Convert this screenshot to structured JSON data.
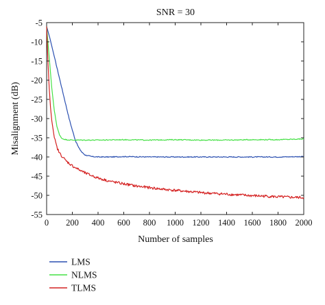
{
  "chart_data": {
    "type": "line",
    "title": "SNR = 30",
    "xlabel": "Number of samples",
    "ylabel": "Misalignment (dB)",
    "xlim": [
      0,
      2000
    ],
    "ylim": [
      -55,
      -5
    ],
    "xticks": [
      0,
      200,
      400,
      600,
      800,
      1000,
      1200,
      1400,
      1600,
      1800,
      2000
    ],
    "yticks": [
      -5,
      -10,
      -15,
      -20,
      -25,
      -30,
      -35,
      -40,
      -45,
      -50,
      -55
    ],
    "grid": false,
    "legend_position": "bottom-left, below plot",
    "series": [
      {
        "name": "LMS",
        "color": "#2a4fb0",
        "points": [
          [
            0,
            -6
          ],
          [
            25,
            -9
          ],
          [
            50,
            -12.5
          ],
          [
            75,
            -16
          ],
          [
            100,
            -19.5
          ],
          [
            125,
            -23
          ],
          [
            150,
            -26.5
          ],
          [
            175,
            -30
          ],
          [
            200,
            -33
          ],
          [
            225,
            -35.8
          ],
          [
            250,
            -37.6
          ],
          [
            275,
            -38.8
          ],
          [
            300,
            -39.5
          ],
          [
            350,
            -39.9
          ],
          [
            400,
            -40.0
          ],
          [
            500,
            -40.0
          ],
          [
            600,
            -39.9
          ],
          [
            800,
            -40.0
          ],
          [
            1000,
            -40.0
          ],
          [
            1200,
            -40.0
          ],
          [
            1400,
            -40.0
          ],
          [
            1600,
            -40.0
          ],
          [
            1800,
            -40.0
          ],
          [
            2000,
            -39.9
          ]
        ]
      },
      {
        "name": "NLMS",
        "color": "#44e044",
        "points": [
          [
            0,
            -6
          ],
          [
            20,
            -14
          ],
          [
            40,
            -22
          ],
          [
            60,
            -28
          ],
          [
            80,
            -32
          ],
          [
            100,
            -34.3
          ],
          [
            120,
            -35.2
          ],
          [
            150,
            -35.5
          ],
          [
            200,
            -35.6
          ],
          [
            400,
            -35.6
          ],
          [
            600,
            -35.5
          ],
          [
            800,
            -35.6
          ],
          [
            1000,
            -35.5
          ],
          [
            1200,
            -35.6
          ],
          [
            1400,
            -35.6
          ],
          [
            1600,
            -35.5
          ],
          [
            1800,
            -35.5
          ],
          [
            2000,
            -35.3
          ]
        ]
      },
      {
        "name": "TLMS",
        "color": "#d42020",
        "points": [
          [
            0,
            -6
          ],
          [
            10,
            -15
          ],
          [
            20,
            -22
          ],
          [
            30,
            -27
          ],
          [
            40,
            -30.5
          ],
          [
            60,
            -35
          ],
          [
            80,
            -37.5
          ],
          [
            100,
            -39
          ],
          [
            125,
            -40
          ],
          [
            150,
            -41
          ],
          [
            200,
            -42.3
          ],
          [
            250,
            -43.3
          ],
          [
            300,
            -44.2
          ],
          [
            400,
            -45.5
          ],
          [
            500,
            -46.4
          ],
          [
            600,
            -47.0
          ],
          [
            700,
            -47.6
          ],
          [
            800,
            -48.0
          ],
          [
            900,
            -48.4
          ],
          [
            1000,
            -48.7
          ],
          [
            1100,
            -49.0
          ],
          [
            1200,
            -49.3
          ],
          [
            1300,
            -49.5
          ],
          [
            1400,
            -49.7
          ],
          [
            1500,
            -49.9
          ],
          [
            1600,
            -50.1
          ],
          [
            1700,
            -50.2
          ],
          [
            1800,
            -50.4
          ],
          [
            1900,
            -50.5
          ],
          [
            2000,
            -50.6
          ]
        ]
      }
    ]
  }
}
